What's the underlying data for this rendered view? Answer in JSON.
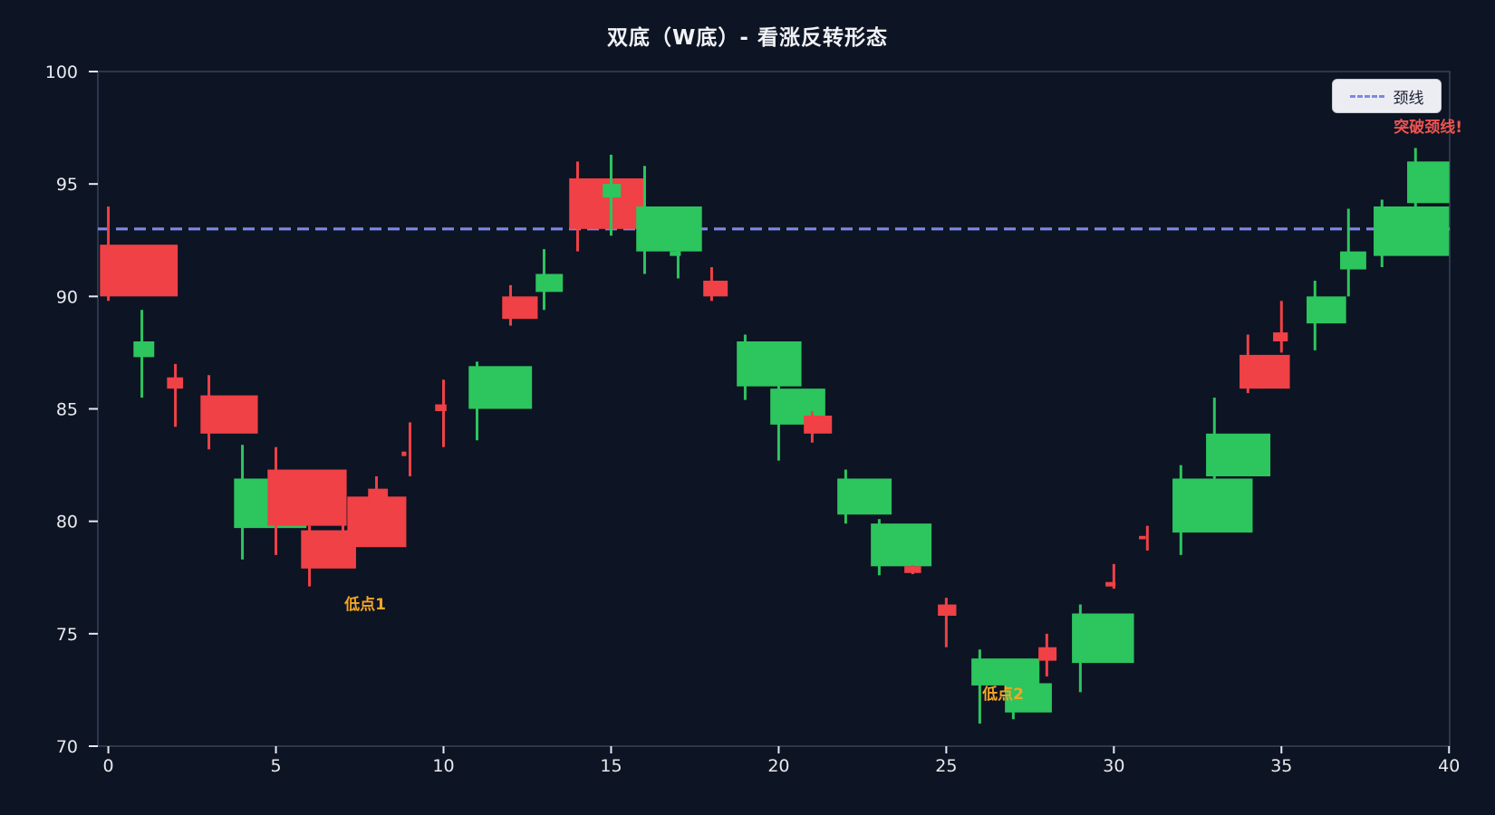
{
  "title": "双底（W底）- 看涨反转形态",
  "legend": {
    "neckline_label": "颈线"
  },
  "annotations": {
    "low1": "低点1",
    "low2": "低点2",
    "breakout": "突破颈线!"
  },
  "colors": {
    "background": "#0d1423",
    "bull": "#2dc55e",
    "bear": "#ef4146",
    "neckline": "#7e87e8",
    "title_color": "#f2f3f7",
    "tick_color": "#e9eaee",
    "spine": "#39415a",
    "annotation_orange": "#f5a623",
    "annotation_red": "#ef5350",
    "legend_bg": "#ecedf3",
    "legend_text": "#1b2030"
  },
  "chart_data": {
    "type": "candlestick",
    "title": "双底（W底）- 看涨反转形态",
    "xlabel": "",
    "ylabel": "",
    "xlim": [
      -0.313,
      40.02
    ],
    "ylim": [
      70,
      100
    ],
    "x_ticks": [
      0,
      5,
      10,
      15,
      20,
      25,
      30,
      35,
      40
    ],
    "y_ticks": [
      70,
      75,
      80,
      85,
      90,
      95,
      100
    ],
    "grid": false,
    "legend_position": "upper right",
    "neckline_value": 93.0,
    "neckline_style": "dashed",
    "candles": [
      {
        "x": 0,
        "o": 92.3,
        "h": 94.0,
        "l": 89.8,
        "c": 90.0,
        "w": 2.32
      },
      {
        "x": 1,
        "o": 87.3,
        "h": 89.4,
        "l": 85.5,
        "c": 88.0,
        "w": 0.62
      },
      {
        "x": 2,
        "o": 86.4,
        "h": 87.0,
        "l": 84.2,
        "c": 85.9,
        "w": 0.48
      },
      {
        "x": 3,
        "o": 85.6,
        "h": 86.5,
        "l": 83.2,
        "c": 83.9,
        "w": 1.71
      },
      {
        "x": 4,
        "o": 79.7,
        "h": 83.4,
        "l": 78.3,
        "c": 81.9,
        "w": 2.16
      },
      {
        "x": 5,
        "o": 82.3,
        "h": 83.3,
        "l": 78.5,
        "c": 79.8,
        "w": 2.36
      },
      {
        "x": 6,
        "o": 79.6,
        "h": 79.8,
        "l": 77.1,
        "c": 77.9,
        "w": 1.64
      },
      {
        "x": 7,
        "o": 81.1,
        "h": 81.1,
        "l": 78.85,
        "c": 78.85,
        "w": 1.76,
        "xo": 0.13
      },
      {
        "x": 8,
        "o": 81.45,
        "h": 82.0,
        "l": 78.9,
        "c": 78.9,
        "w": 0.59
      },
      {
        "x": 9,
        "o": 83.1,
        "h": 84.4,
        "l": 82.0,
        "c": 82.9,
        "w": 0.14
      },
      {
        "x": 10,
        "o": 85.2,
        "h": 86.3,
        "l": 83.3,
        "c": 84.9,
        "w": 0.34
      },
      {
        "x": 11,
        "o": 85.0,
        "h": 87.1,
        "l": 83.6,
        "c": 86.9,
        "w": 1.89
      },
      {
        "x": 12,
        "o": 90.0,
        "h": 90.5,
        "l": 88.7,
        "c": 89.0,
        "w": 1.06
      },
      {
        "x": 13,
        "o": 90.2,
        "h": 92.1,
        "l": 89.4,
        "c": 91.0,
        "w": 0.81
      },
      {
        "x": 14,
        "o": 95.25,
        "h": 96.0,
        "l": 92.0,
        "c": 93.0,
        "w": 2.23
      },
      {
        "x": 15,
        "o": 94.4,
        "h": 96.3,
        "l": 92.7,
        "c": 95.0,
        "w": 0.54
      },
      {
        "x": 16,
        "o": 92.0,
        "h": 95.8,
        "l": 91.0,
        "c": 94.0,
        "w": 1.96
      },
      {
        "x": 17,
        "o": 91.8,
        "h": 92.6,
        "l": 90.8,
        "c": 92.0,
        "w": 0.33
      },
      {
        "x": 18,
        "o": 90.7,
        "h": 91.3,
        "l": 89.8,
        "c": 90.0,
        "w": 0.73
      },
      {
        "x": 19,
        "o": 86.0,
        "h": 88.3,
        "l": 85.4,
        "c": 88.0,
        "w": 1.93
      },
      {
        "x": 20,
        "o": 84.3,
        "h": 86.1,
        "l": 82.7,
        "c": 85.9,
        "w": 1.64
      },
      {
        "x": 21,
        "o": 84.7,
        "h": 84.9,
        "l": 83.5,
        "c": 83.9,
        "w": 0.84
      },
      {
        "x": 22,
        "o": 80.3,
        "h": 82.3,
        "l": 79.9,
        "c": 81.9,
        "w": 1.62
      },
      {
        "x": 23,
        "o": 78.0,
        "h": 80.1,
        "l": 77.6,
        "c": 79.9,
        "w": 1.81
      },
      {
        "x": 24,
        "o": 78.0,
        "h": 78.05,
        "l": 77.65,
        "c": 77.7,
        "w": 0.5
      },
      {
        "x": 25,
        "o": 76.3,
        "h": 76.6,
        "l": 74.4,
        "c": 75.8,
        "w": 0.55
      },
      {
        "x": 26,
        "o": 72.7,
        "h": 74.3,
        "l": 71.0,
        "c": 73.9,
        "w": 2.03
      },
      {
        "x": 27,
        "o": 71.5,
        "h": 73.0,
        "l": 71.2,
        "c": 72.8,
        "w": 1.4
      },
      {
        "x": 28,
        "o": 74.4,
        "h": 75.0,
        "l": 73.1,
        "c": 73.8,
        "w": 0.54
      },
      {
        "x": 29,
        "o": 73.7,
        "h": 76.3,
        "l": 72.4,
        "c": 75.9,
        "w": 1.85
      },
      {
        "x": 30,
        "o": 77.3,
        "h": 78.1,
        "l": 77.0,
        "c": 77.1,
        "w": 0.3
      },
      {
        "x": 31,
        "o": 79.35,
        "h": 79.8,
        "l": 78.7,
        "c": 79.2,
        "w": 0.2
      },
      {
        "x": 32,
        "o": 79.5,
        "h": 82.5,
        "l": 78.5,
        "c": 81.9,
        "w": 2.39
      },
      {
        "x": 33,
        "o": 82.0,
        "h": 85.5,
        "l": 81.5,
        "c": 83.9,
        "w": 1.92
      },
      {
        "x": 34,
        "o": 87.4,
        "h": 88.3,
        "l": 85.7,
        "c": 85.9,
        "w": 1.5
      },
      {
        "x": 35,
        "o": 88.4,
        "h": 89.8,
        "l": 87.5,
        "c": 88.0,
        "w": 0.44
      },
      {
        "x": 36,
        "o": 88.8,
        "h": 90.7,
        "l": 87.6,
        "c": 90.0,
        "w": 1.18
      },
      {
        "x": 37,
        "o": 91.2,
        "h": 93.9,
        "l": 90.0,
        "c": 92.0,
        "w": 0.78
      },
      {
        "x": 38,
        "o": 91.8,
        "h": 94.3,
        "l": 91.3,
        "c": 94.0,
        "w": 2.25
      },
      {
        "x": 39,
        "o": 94.15,
        "h": 96.6,
        "l": 94.0,
        "c": 96.0,
        "w": 1.26
      }
    ]
  }
}
